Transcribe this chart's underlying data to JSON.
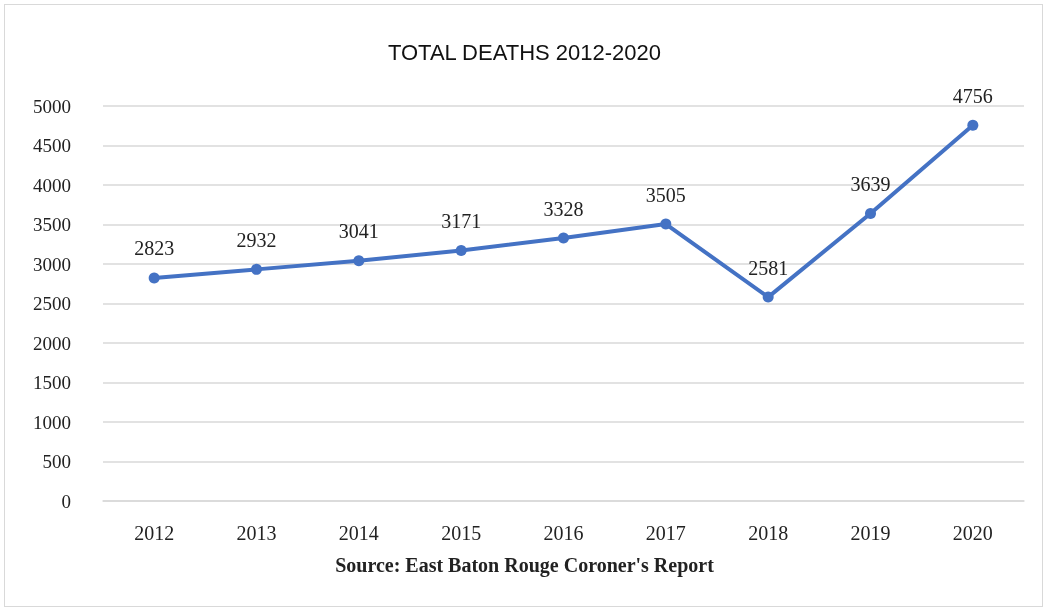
{
  "chart_data": {
    "type": "line",
    "title": "TOTAL DEATHS 2012-2020",
    "categories": [
      "2012",
      "2013",
      "2014",
      "2015",
      "2016",
      "2017",
      "2018",
      "2019",
      "2020"
    ],
    "series": [
      {
        "color": "#4472c4",
        "values": [
          2823,
          2932,
          3041,
          3171,
          3328,
          3505,
          2581,
          3639,
          4756
        ]
      }
    ],
    "ylim": [
      0,
      5000
    ],
    "yticks": [
      0,
      500,
      1000,
      1500,
      2000,
      2500,
      3000,
      3500,
      4000,
      4500,
      5000
    ],
    "grid": "y",
    "marker": "circle",
    "line_style": "solid",
    "data_labels": true,
    "annotations": [
      "Source: East Baton Rouge Coroner's Report"
    ]
  }
}
